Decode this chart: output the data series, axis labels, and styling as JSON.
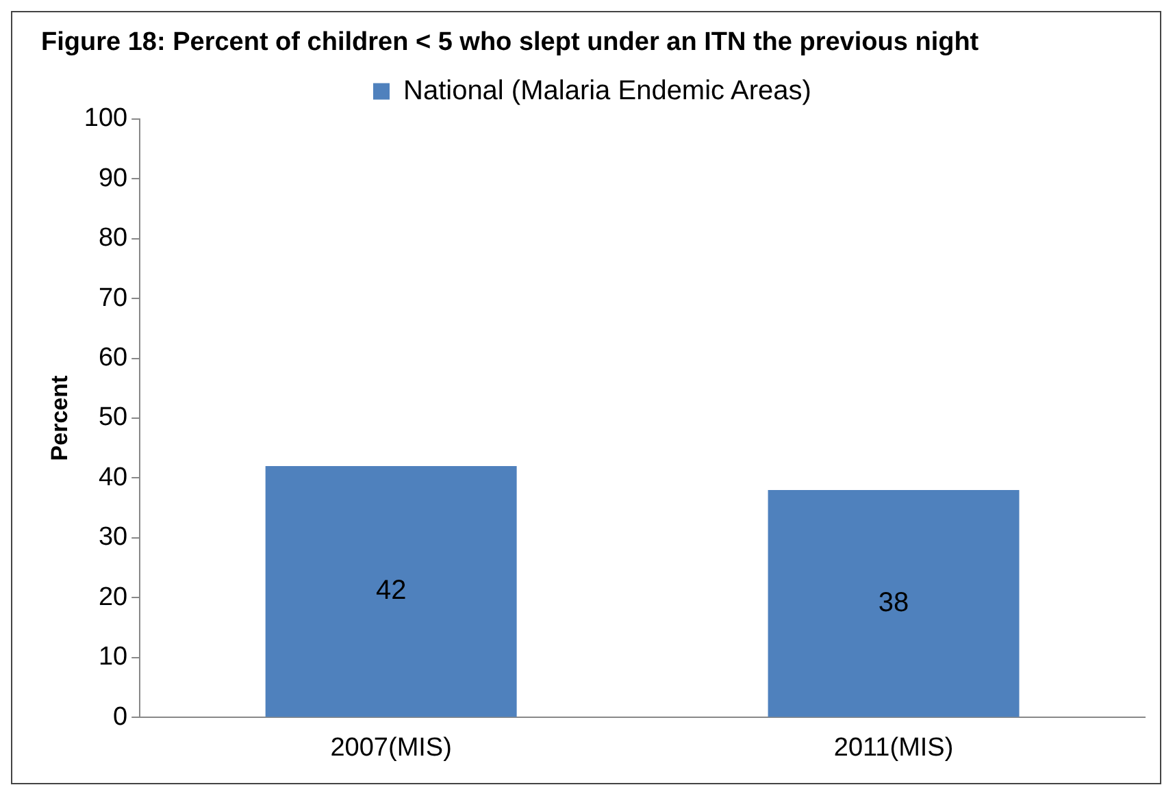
{
  "chart_data": {
    "type": "bar",
    "title": "Figure 18: Percent of children < 5 who slept under an ITN the previous night",
    "ylabel": "Percent",
    "categories": [
      "2007(MIS)",
      "2011(MIS)"
    ],
    "series": [
      {
        "name": "National (Malaria Endemic Areas)",
        "color": "#4f81bd",
        "values": [
          42,
          38
        ]
      }
    ],
    "ylim": [
      0,
      100
    ],
    "yticks": [
      0,
      10,
      20,
      30,
      40,
      50,
      60,
      70,
      80,
      90,
      100
    ],
    "grid": false,
    "legend": "top",
    "data_labels": true
  }
}
